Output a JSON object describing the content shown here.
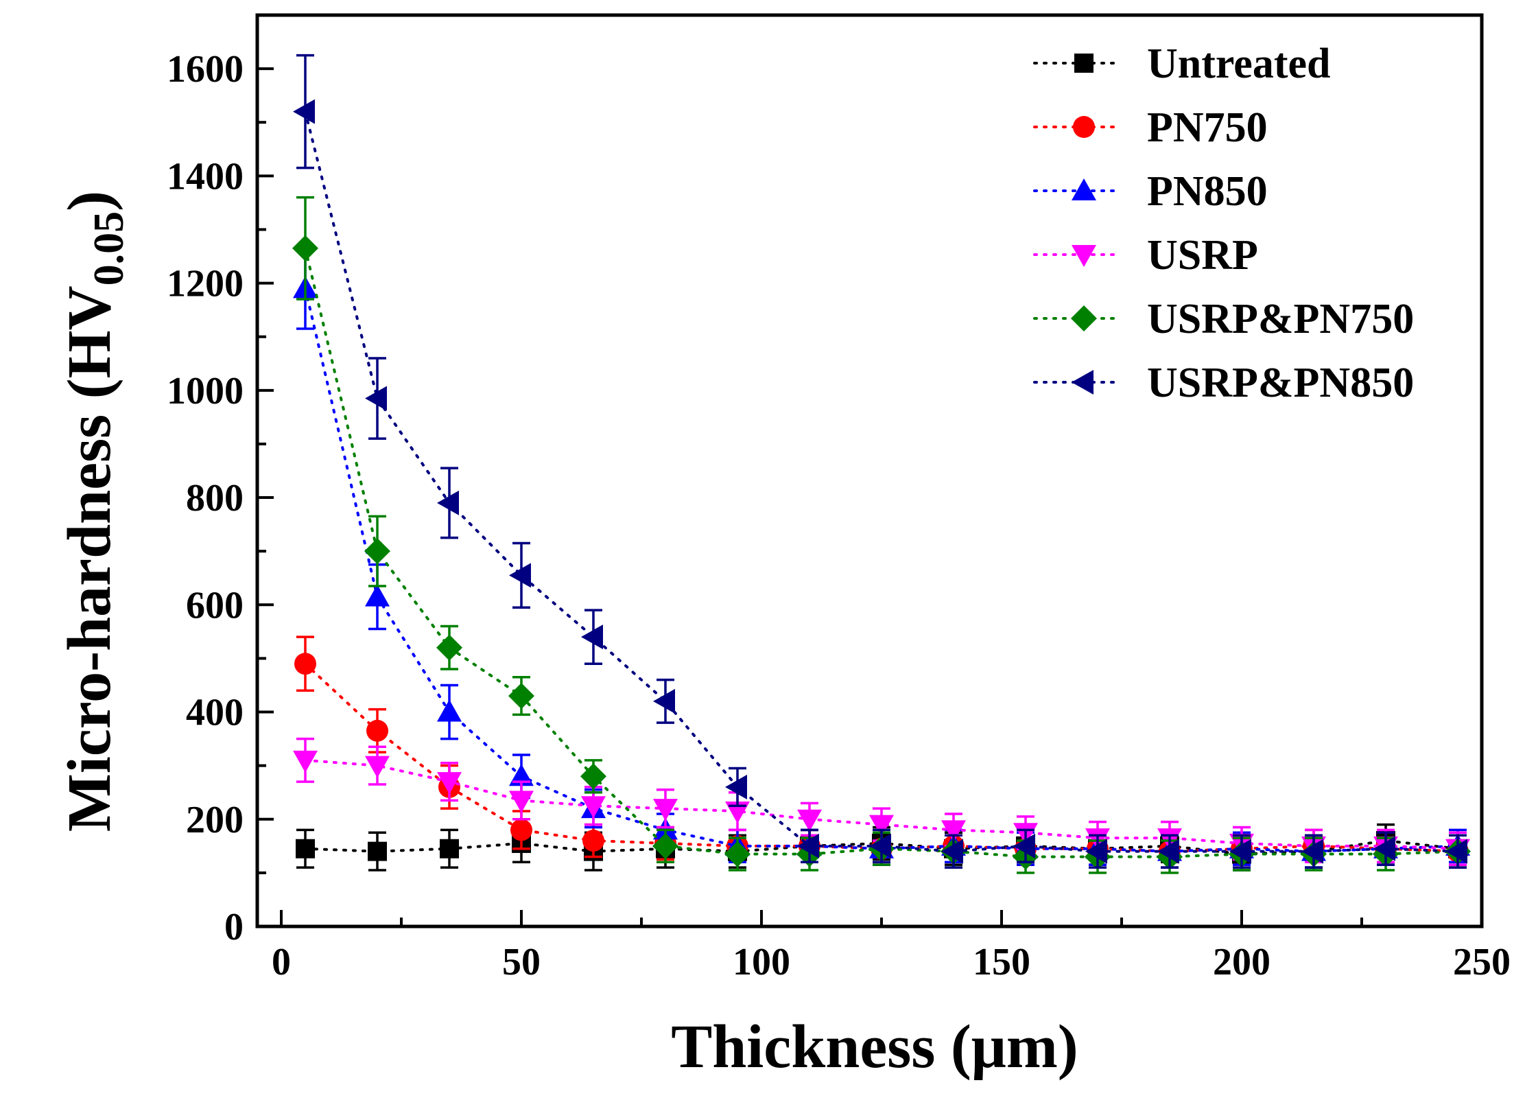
{
  "chart_data": {
    "type": "scatter",
    "xlabel": "Thickness (μm)",
    "ylabel_main": "Micro-hardness (HV",
    "ylabel_sub": "0.05",
    "ylabel_close": ")",
    "xlim": [
      -5,
      250
    ],
    "ylim": [
      0,
      1700
    ],
    "xticks": [
      0,
      50,
      100,
      150,
      200,
      250
    ],
    "yticks": [
      0,
      200,
      400,
      600,
      800,
      1000,
      1200,
      1400,
      1600
    ],
    "grid": false,
    "legend_position": "top-right",
    "x": [
      5,
      20,
      35,
      50,
      65,
      80,
      95,
      110,
      125,
      140,
      155,
      170,
      185,
      200,
      215,
      230,
      245
    ],
    "series": [
      {
        "name": "Untreated",
        "marker": "square",
        "color": "#000000",
        "values": [
          145,
          140,
          145,
          155,
          140,
          145,
          140,
          150,
          155,
          145,
          150,
          145,
          150,
          135,
          140,
          160,
          145
        ],
        "errors": [
          35,
          35,
          35,
          35,
          35,
          35,
          30,
          30,
          30,
          30,
          35,
          30,
          30,
          30,
          30,
          30,
          30
        ]
      },
      {
        "name": "PN750",
        "marker": "circle",
        "color": "#ff0000",
        "values": [
          490,
          365,
          260,
          180,
          160,
          155,
          150,
          150,
          145,
          150,
          145,
          145,
          140,
          145,
          150,
          145,
          140
        ],
        "errors": [
          50,
          40,
          40,
          35,
          30,
          30,
          30,
          30,
          30,
          30,
          30,
          30,
          30,
          30,
          30,
          30,
          30
        ]
      },
      {
        "name": "PN850",
        "marker": "triangle-up",
        "color": "#0000ff",
        "values": [
          1190,
          615,
          400,
          280,
          220,
          180,
          150,
          150,
          145,
          150,
          145,
          145,
          140,
          145,
          140,
          145,
          150
        ],
        "errors": [
          75,
          60,
          50,
          40,
          35,
          30,
          30,
          30,
          30,
          30,
          30,
          30,
          30,
          30,
          30,
          30,
          30
        ]
      },
      {
        "name": "USRP",
        "marker": "triangle-down",
        "color": "#ff00ff",
        "values": [
          310,
          300,
          270,
          235,
          225,
          220,
          215,
          200,
          190,
          180,
          175,
          165,
          165,
          155,
          150,
          150,
          145
        ],
        "errors": [
          40,
          35,
          35,
          35,
          35,
          35,
          35,
          30,
          30,
          30,
          30,
          30,
          30,
          30,
          30,
          30,
          30
        ]
      },
      {
        "name": "USRP&PN750",
        "marker": "diamond",
        "color": "#008000",
        "values": [
          1265,
          700,
          520,
          430,
          280,
          150,
          135,
          135,
          145,
          140,
          130,
          130,
          130,
          135,
          135,
          135,
          140
        ],
        "errors": [
          95,
          65,
          40,
          35,
          30,
          30,
          30,
          30,
          30,
          30,
          30,
          30,
          30,
          30,
          30,
          30,
          30
        ]
      },
      {
        "name": "USRP&PN850",
        "marker": "triangle-left",
        "color": "#000080",
        "values": [
          1520,
          985,
          790,
          655,
          540,
          420,
          260,
          150,
          150,
          140,
          150,
          140,
          140,
          140,
          140,
          145,
          140
        ],
        "errors": [
          105,
          75,
          65,
          60,
          50,
          40,
          35,
          30,
          30,
          30,
          30,
          30,
          30,
          30,
          30,
          30,
          30
        ]
      }
    ]
  }
}
